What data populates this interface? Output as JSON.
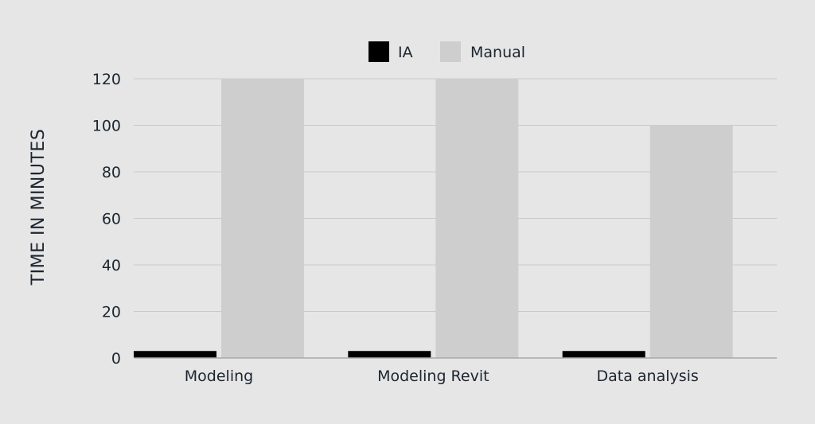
{
  "chart_data": {
    "type": "bar",
    "title": "",
    "xlabel": "",
    "ylabel": "TIME IN MINUTES",
    "categories": [
      "Modeling",
      "Modeling Revit",
      "Data analysis"
    ],
    "series": [
      {
        "name": "IA",
        "color": "#000000",
        "values": [
          3,
          3,
          3
        ]
      },
      {
        "name": "Manual",
        "color": "#cfcecf",
        "values": [
          120,
          120,
          100
        ]
      }
    ],
    "ylim": [
      0,
      120
    ],
    "yticks": [
      0,
      20,
      40,
      60,
      80,
      100,
      120
    ],
    "grid": true,
    "legend_position": "top-center"
  }
}
